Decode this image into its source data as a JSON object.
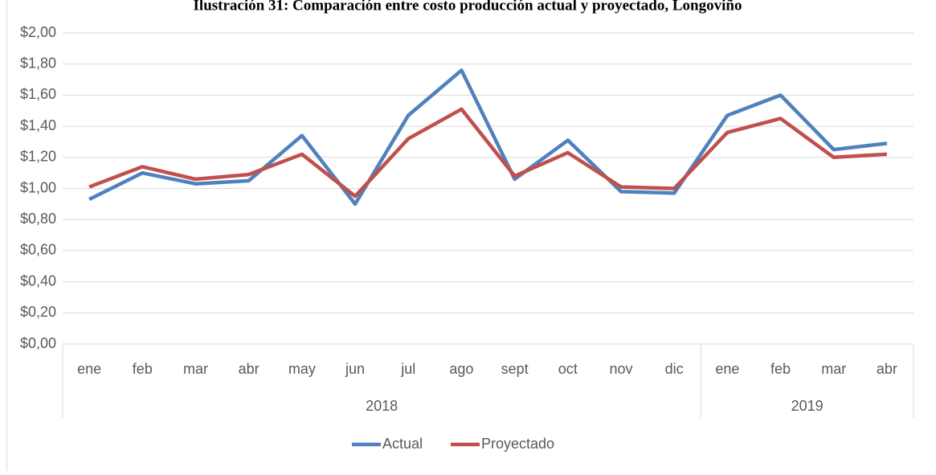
{
  "chart_data": {
    "type": "line",
    "title": "Ilustración 31: Comparación entre costo producción actual y proyectado, Longoviño",
    "categories": [
      "ene",
      "feb",
      "mar",
      "abr",
      "may",
      "jun",
      "jul",
      "ago",
      "sept",
      "oct",
      "nov",
      "dic",
      "ene",
      "feb",
      "mar",
      "abr"
    ],
    "category_groups": [
      {
        "name": "2018",
        "count": 12
      },
      {
        "name": "2019",
        "count": 4
      }
    ],
    "series": [
      {
        "name": "Actual",
        "color": "#4f81bd",
        "values": [
          0.93,
          1.1,
          1.03,
          1.05,
          1.34,
          0.9,
          1.47,
          1.76,
          1.06,
          1.31,
          0.98,
          0.97,
          1.47,
          1.6,
          1.25,
          1.29
        ]
      },
      {
        "name": "Proyectado",
        "color": "#c0504d",
        "values": [
          1.01,
          1.14,
          1.06,
          1.09,
          1.22,
          0.95,
          1.32,
          1.51,
          1.08,
          1.23,
          1.01,
          1.0,
          1.36,
          1.45,
          1.2,
          1.22
        ]
      }
    ],
    "ylim": [
      0,
      2
    ],
    "yticks": [
      {
        "value": 0,
        "label": "$0,00"
      },
      {
        "value": 0.2,
        "label": "$0,20"
      },
      {
        "value": 0.4,
        "label": "$0,40"
      },
      {
        "value": 0.6,
        "label": "$0,60"
      },
      {
        "value": 0.8,
        "label": "$0,80"
      },
      {
        "value": 1,
        "label": "$1,00"
      },
      {
        "value": 1.2,
        "label": "$1,20"
      },
      {
        "value": 1.4,
        "label": "$1,40"
      },
      {
        "value": 1.6,
        "label": "$1,60"
      },
      {
        "value": 1.8,
        "label": "$1,80"
      },
      {
        "value": 2,
        "label": "$2,00"
      }
    ],
    "grid": true,
    "legend": "bottom"
  }
}
